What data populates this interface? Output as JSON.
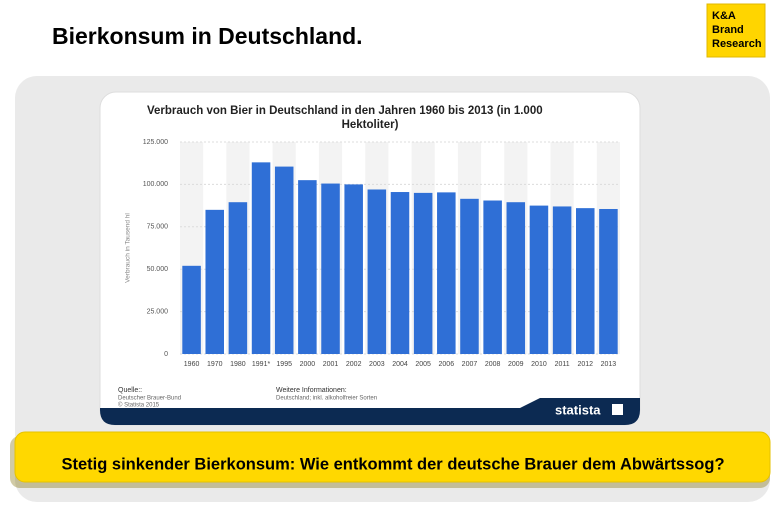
{
  "header": {
    "title": "Bierkonsum in Deutschland."
  },
  "logo": [
    "K&A",
    "Brand",
    "Research"
  ],
  "chart_data": {
    "type": "bar",
    "title_lines": [
      "Verbrauch von Bier in Deutschland in den Jahren 1960 bis 2013 (in 1.000",
      "Hektoliter)"
    ],
    "y_label": "Verbrauch in Tausend hl",
    "categories": [
      "1960",
      "1970",
      "1980",
      "1991*",
      "1995",
      "2000",
      "2001",
      "2002",
      "2003",
      "2004",
      "2005",
      "2006",
      "2007",
      "2008",
      "2009",
      "2010",
      "2011",
      "2012",
      "2013"
    ],
    "values": [
      52000,
      85000,
      89500,
      113000,
      110500,
      102500,
      100500,
      100000,
      97000,
      95500,
      95000,
      95300,
      91500,
      90500,
      89500,
      87500,
      87000,
      86000,
      85500
    ],
    "color": "#2f6fd6",
    "ylim": [
      0,
      125000
    ],
    "yticks": [
      0,
      {
        "value": 25000,
        "label": "25.000"
      },
      {
        "value": 50000,
        "label": "50.000"
      },
      {
        "value": 75000,
        "label": "75.000"
      },
      {
        "value": 100000,
        "label": "100.000"
      },
      {
        "value": 125000,
        "label": "125.000"
      }
    ],
    "grid": true
  },
  "source": {
    "heading": "Quelle::",
    "lines": [
      "Deutscher Brauer-Bund",
      "© Statista 2015"
    ]
  },
  "info": {
    "heading": "Weitere Informationen:",
    "text": "Deutschland; inkl. alkoholfreier Sorten"
  },
  "brand": "statista",
  "banner": "Stetig sinkender Bierkonsum: Wie entkommt der deutsche Brauer dem Abwärtssog?"
}
